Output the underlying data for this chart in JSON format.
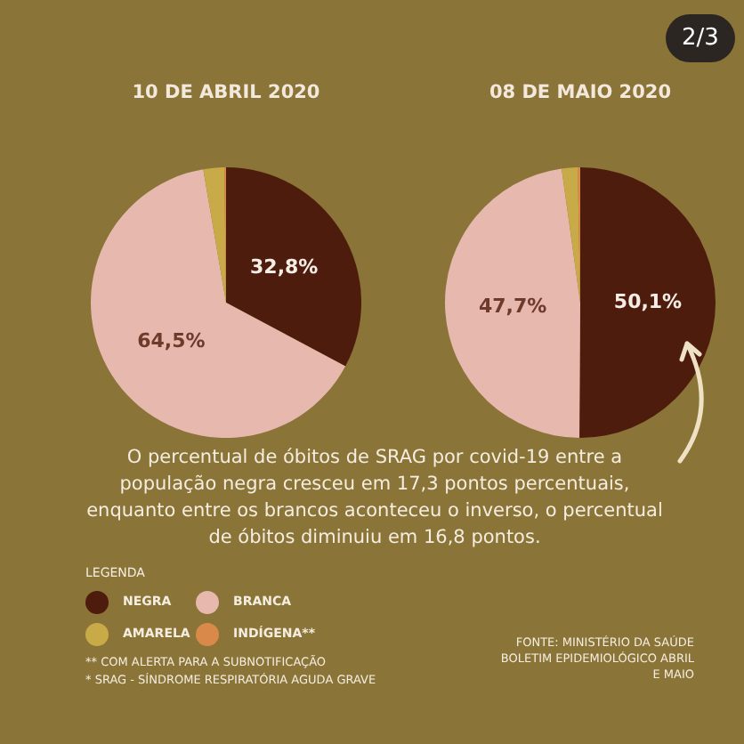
{
  "chart_data": [
    {
      "type": "pie",
      "title": "10 DE ABRIL 2020",
      "categories": [
        "NEGRA",
        "BRANCA",
        "AMARELA",
        "INDÍGENA**"
      ],
      "values": [
        32.8,
        64.5,
        2.5,
        0.2
      ],
      "colors": [
        "#4e1c0c",
        "#e6b8ae",
        "#c9aa48",
        "#d98a4a"
      ],
      "value_labels": [
        "32,8%",
        "64,5%",
        null,
        null
      ],
      "legend": "bottom left",
      "legend_title": "LEGENDA"
    },
    {
      "type": "pie",
      "title": "08 DE MAIO 2020",
      "categories": [
        null,
        null,
        null,
        null
      ],
      "values": [
        50.1,
        47.7,
        1.9,
        0.3
      ],
      "colors": [
        "#4e1c0c",
        "#e6b8ae",
        "#c9aa48",
        "#d98a4a"
      ],
      "value_labels": [
        "50,1%",
        "47,7%",
        null,
        null
      ],
      "annotations": [
        "2/3"
      ]
    },
    {
      "type": "other",
      "annotations": [
        "O percentual de óbitos de SRAG por covid-19 entre a população negra cresceu em 17,3 pontos percentuais, enquanto entre os brancos aconteceu o inverso, o percentual de óbitos diminuiu em 16,8 pontos.",
        "** COM ALERTA PARA A SUBNOTIFICAÇÃO",
        "* SRAG - SÍNDROME RESPIRATÓRIA AGUDA GRAVE",
        "FONTE: MINISTÉRIO DA SAÚDE BOLETIM EPIDEMIOLÓGICO ABRIL E MAIO"
      ]
    }
  ]
}
